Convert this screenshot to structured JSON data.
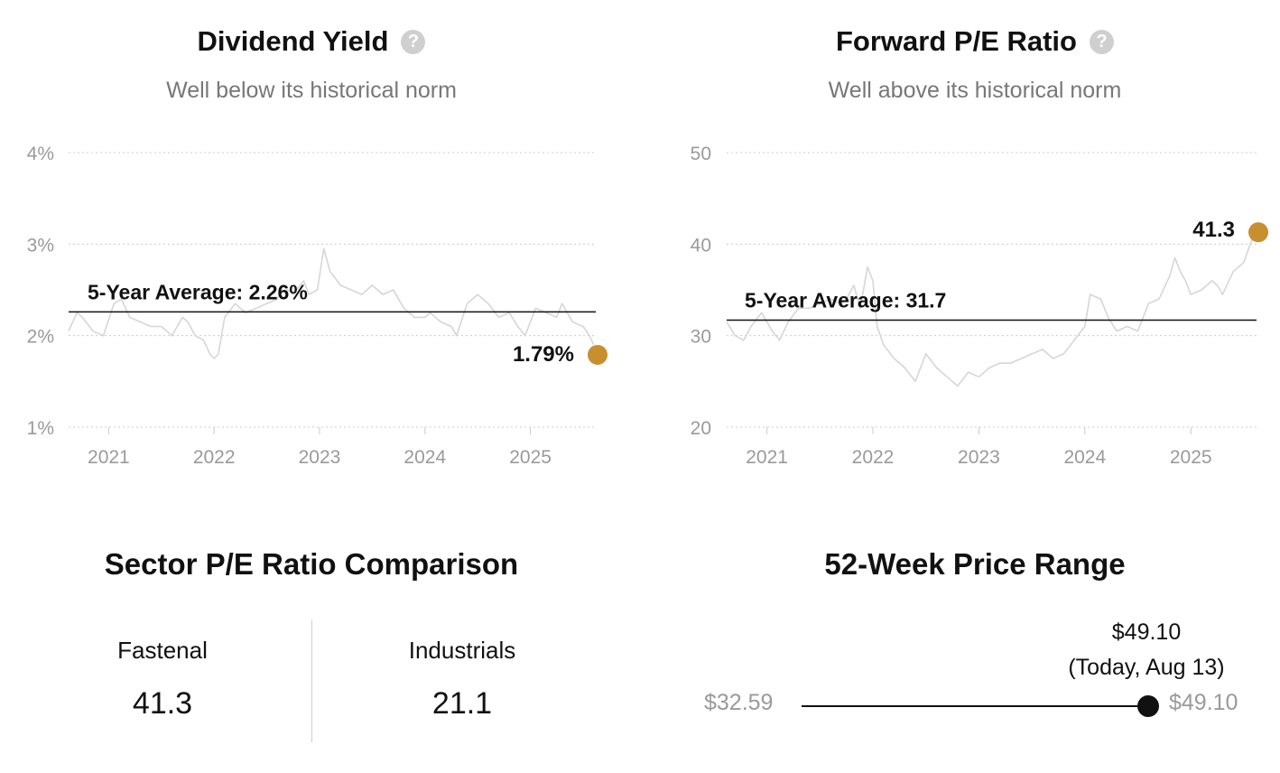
{
  "dividend_yield": {
    "title": "Dividend Yield",
    "help_icon": "question-circle-icon",
    "subtitle": "Well below its historical norm",
    "average_label": "5-Year Average: 2.26%",
    "current_label": "1.79%"
  },
  "forward_pe": {
    "title": "Forward P/E Ratio",
    "help_icon": "question-circle-icon",
    "subtitle": "Well above its historical norm",
    "average_label": "5-Year Average: 31.7",
    "current_label": "41.3"
  },
  "sector_comparison": {
    "title": "Sector P/E Ratio Comparison",
    "items": [
      {
        "label": "Fastenal",
        "value": "41.3"
      },
      {
        "label": "Industrials",
        "value": "21.1"
      }
    ]
  },
  "price_range": {
    "title": "52-Week Price Range",
    "low": "$32.59",
    "high": "$49.10",
    "current_value": "$49.10",
    "current_note": "(Today, Aug 13)",
    "current_position": 1.0
  },
  "colors": {
    "highlight": "#c88f2e",
    "history_line": "#d6d6d6",
    "average_line": "#111111",
    "grid": "#cccccc",
    "axis_text": "#9a9a9a"
  },
  "chart_data": [
    {
      "type": "line",
      "title": "Dividend Yield",
      "y_tick_labels": [
        "4%",
        "3%",
        "2%",
        "1%"
      ],
      "y_ticks": [
        4,
        3,
        2,
        1
      ],
      "ylim": [
        1,
        4
      ],
      "x_tick_labels": [
        "2021",
        "2022",
        "2023",
        "2024",
        "2025"
      ],
      "x_ticks": [
        2021,
        2022,
        2023,
        2024,
        2025
      ],
      "xlim": [
        2020.62,
        2025.62
      ],
      "grid": true,
      "average": 2.26,
      "current": {
        "x": 2025.62,
        "y": 1.79
      },
      "series": [
        {
          "x": [
            2020.62,
            2020.7,
            2020.75,
            2020.85,
            2020.95,
            2021.05,
            2021.12,
            2021.2,
            2021.3,
            2021.4,
            2021.5,
            2021.6,
            2021.7,
            2021.75,
            2021.82,
            2021.9,
            2021.96,
            2022.0,
            2022.04,
            2022.1,
            2022.2,
            2022.3,
            2022.4,
            2022.5,
            2022.6,
            2022.65,
            2022.75,
            2022.85,
            2022.9,
            2022.98,
            2023.04,
            2023.1,
            2023.2,
            2023.3,
            2023.4,
            2023.5,
            2023.6,
            2023.7,
            2023.8,
            2023.9,
            2024.0,
            2024.05,
            2024.15,
            2024.25,
            2024.3,
            2024.4,
            2024.5,
            2024.6,
            2024.7,
            2024.8,
            2024.88,
            2024.95,
            2025.05,
            2025.15,
            2025.25,
            2025.3,
            2025.4,
            2025.5,
            2025.56,
            2025.6
          ],
          "y": [
            2.05,
            2.25,
            2.2,
            2.05,
            2.0,
            2.35,
            2.4,
            2.2,
            2.15,
            2.1,
            2.1,
            2.0,
            2.2,
            2.15,
            2.0,
            1.95,
            1.8,
            1.75,
            1.8,
            2.2,
            2.35,
            2.25,
            2.3,
            2.35,
            2.4,
            2.55,
            2.45,
            2.6,
            2.45,
            2.5,
            2.95,
            2.7,
            2.55,
            2.5,
            2.45,
            2.55,
            2.45,
            2.5,
            2.3,
            2.2,
            2.2,
            2.25,
            2.15,
            2.1,
            2.0,
            2.35,
            2.45,
            2.35,
            2.2,
            2.25,
            2.1,
            2.0,
            2.3,
            2.25,
            2.2,
            2.35,
            2.15,
            2.1,
            2.0,
            1.9
          ]
        }
      ]
    },
    {
      "type": "line",
      "title": "Forward P/E Ratio",
      "y_tick_labels": [
        "50",
        "40",
        "30",
        "20"
      ],
      "y_ticks": [
        50,
        40,
        30,
        20
      ],
      "ylim": [
        20,
        50
      ],
      "x_tick_labels": [
        "2021",
        "2022",
        "2023",
        "2024",
        "2025"
      ],
      "x_ticks": [
        2021,
        2022,
        2023,
        2024,
        2025
      ],
      "xlim": [
        2020.62,
        2025.62
      ],
      "grid": true,
      "average": 31.7,
      "current": {
        "x": 2025.62,
        "y": 41.3
      },
      "series": [
        {
          "x": [
            2020.62,
            2020.7,
            2020.78,
            2020.85,
            2020.95,
            2021.05,
            2021.12,
            2021.2,
            2021.3,
            2021.4,
            2021.5,
            2021.6,
            2021.7,
            2021.75,
            2021.82,
            2021.88,
            2021.95,
            2022.0,
            2022.04,
            2022.1,
            2022.2,
            2022.3,
            2022.4,
            2022.5,
            2022.6,
            2022.7,
            2022.8,
            2022.9,
            2023.0,
            2023.1,
            2023.2,
            2023.3,
            2023.4,
            2023.5,
            2023.6,
            2023.7,
            2023.8,
            2023.9,
            2024.0,
            2024.05,
            2024.15,
            2024.22,
            2024.3,
            2024.4,
            2024.5,
            2024.6,
            2024.7,
            2024.8,
            2024.85,
            2024.9,
            2024.95,
            2025.0,
            2025.1,
            2025.2,
            2025.25,
            2025.3,
            2025.4,
            2025.5,
            2025.56,
            2025.6
          ],
          "y": [
            31.5,
            30.0,
            29.5,
            31.0,
            32.5,
            30.5,
            29.5,
            31.5,
            33.0,
            33.0,
            33.5,
            34.0,
            33.5,
            34.0,
            35.5,
            33.0,
            37.5,
            36.0,
            31.0,
            29.0,
            27.5,
            26.5,
            25.0,
            28.0,
            26.5,
            25.5,
            24.5,
            26.0,
            25.5,
            26.5,
            27.0,
            27.0,
            27.5,
            28.0,
            28.5,
            27.5,
            28.0,
            29.5,
            31.0,
            34.5,
            34.0,
            32.0,
            30.5,
            31.0,
            30.5,
            33.5,
            34.0,
            36.5,
            38.5,
            37.0,
            36.0,
            34.5,
            35.0,
            36.0,
            35.5,
            34.5,
            37.0,
            38.0,
            40.0,
            41.0
          ]
        }
      ]
    }
  ]
}
